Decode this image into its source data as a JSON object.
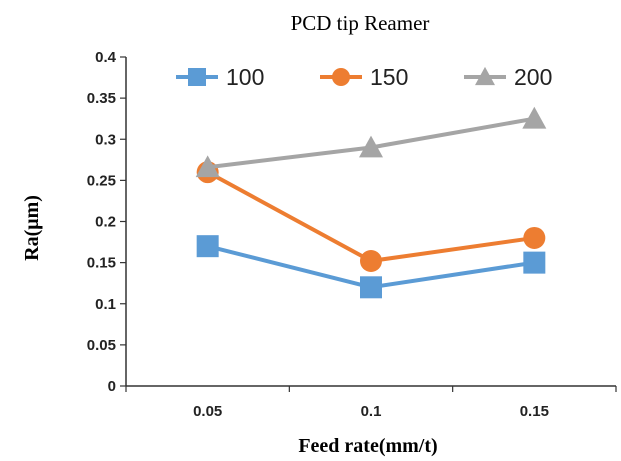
{
  "chart_data": {
    "type": "line",
    "title": "PCD tip Reamer",
    "xlabel": "Feed rate(mm/t)",
    "ylabel": "Ra(μm)",
    "categories": [
      "0.05",
      "0.1",
      "0.15"
    ],
    "ylim": [
      0,
      0.4
    ],
    "yticks": [
      "0",
      "0.05",
      "0.1",
      "0.15",
      "0.2",
      "0.25",
      "0.3",
      "0.35",
      "0.4"
    ],
    "grid": false,
    "legend_position": "top",
    "series": [
      {
        "name": "100",
        "values": [
          0.17,
          0.12,
          0.15
        ],
        "color": "#5B9BD5",
        "marker": "square"
      },
      {
        "name": "150",
        "values": [
          0.26,
          0.152,
          0.18
        ],
        "color": "#ED7D31",
        "marker": "circle"
      },
      {
        "name": "200",
        "values": [
          0.266,
          0.29,
          0.325
        ],
        "color": "#A5A5A5",
        "marker": "triangle"
      }
    ]
  }
}
